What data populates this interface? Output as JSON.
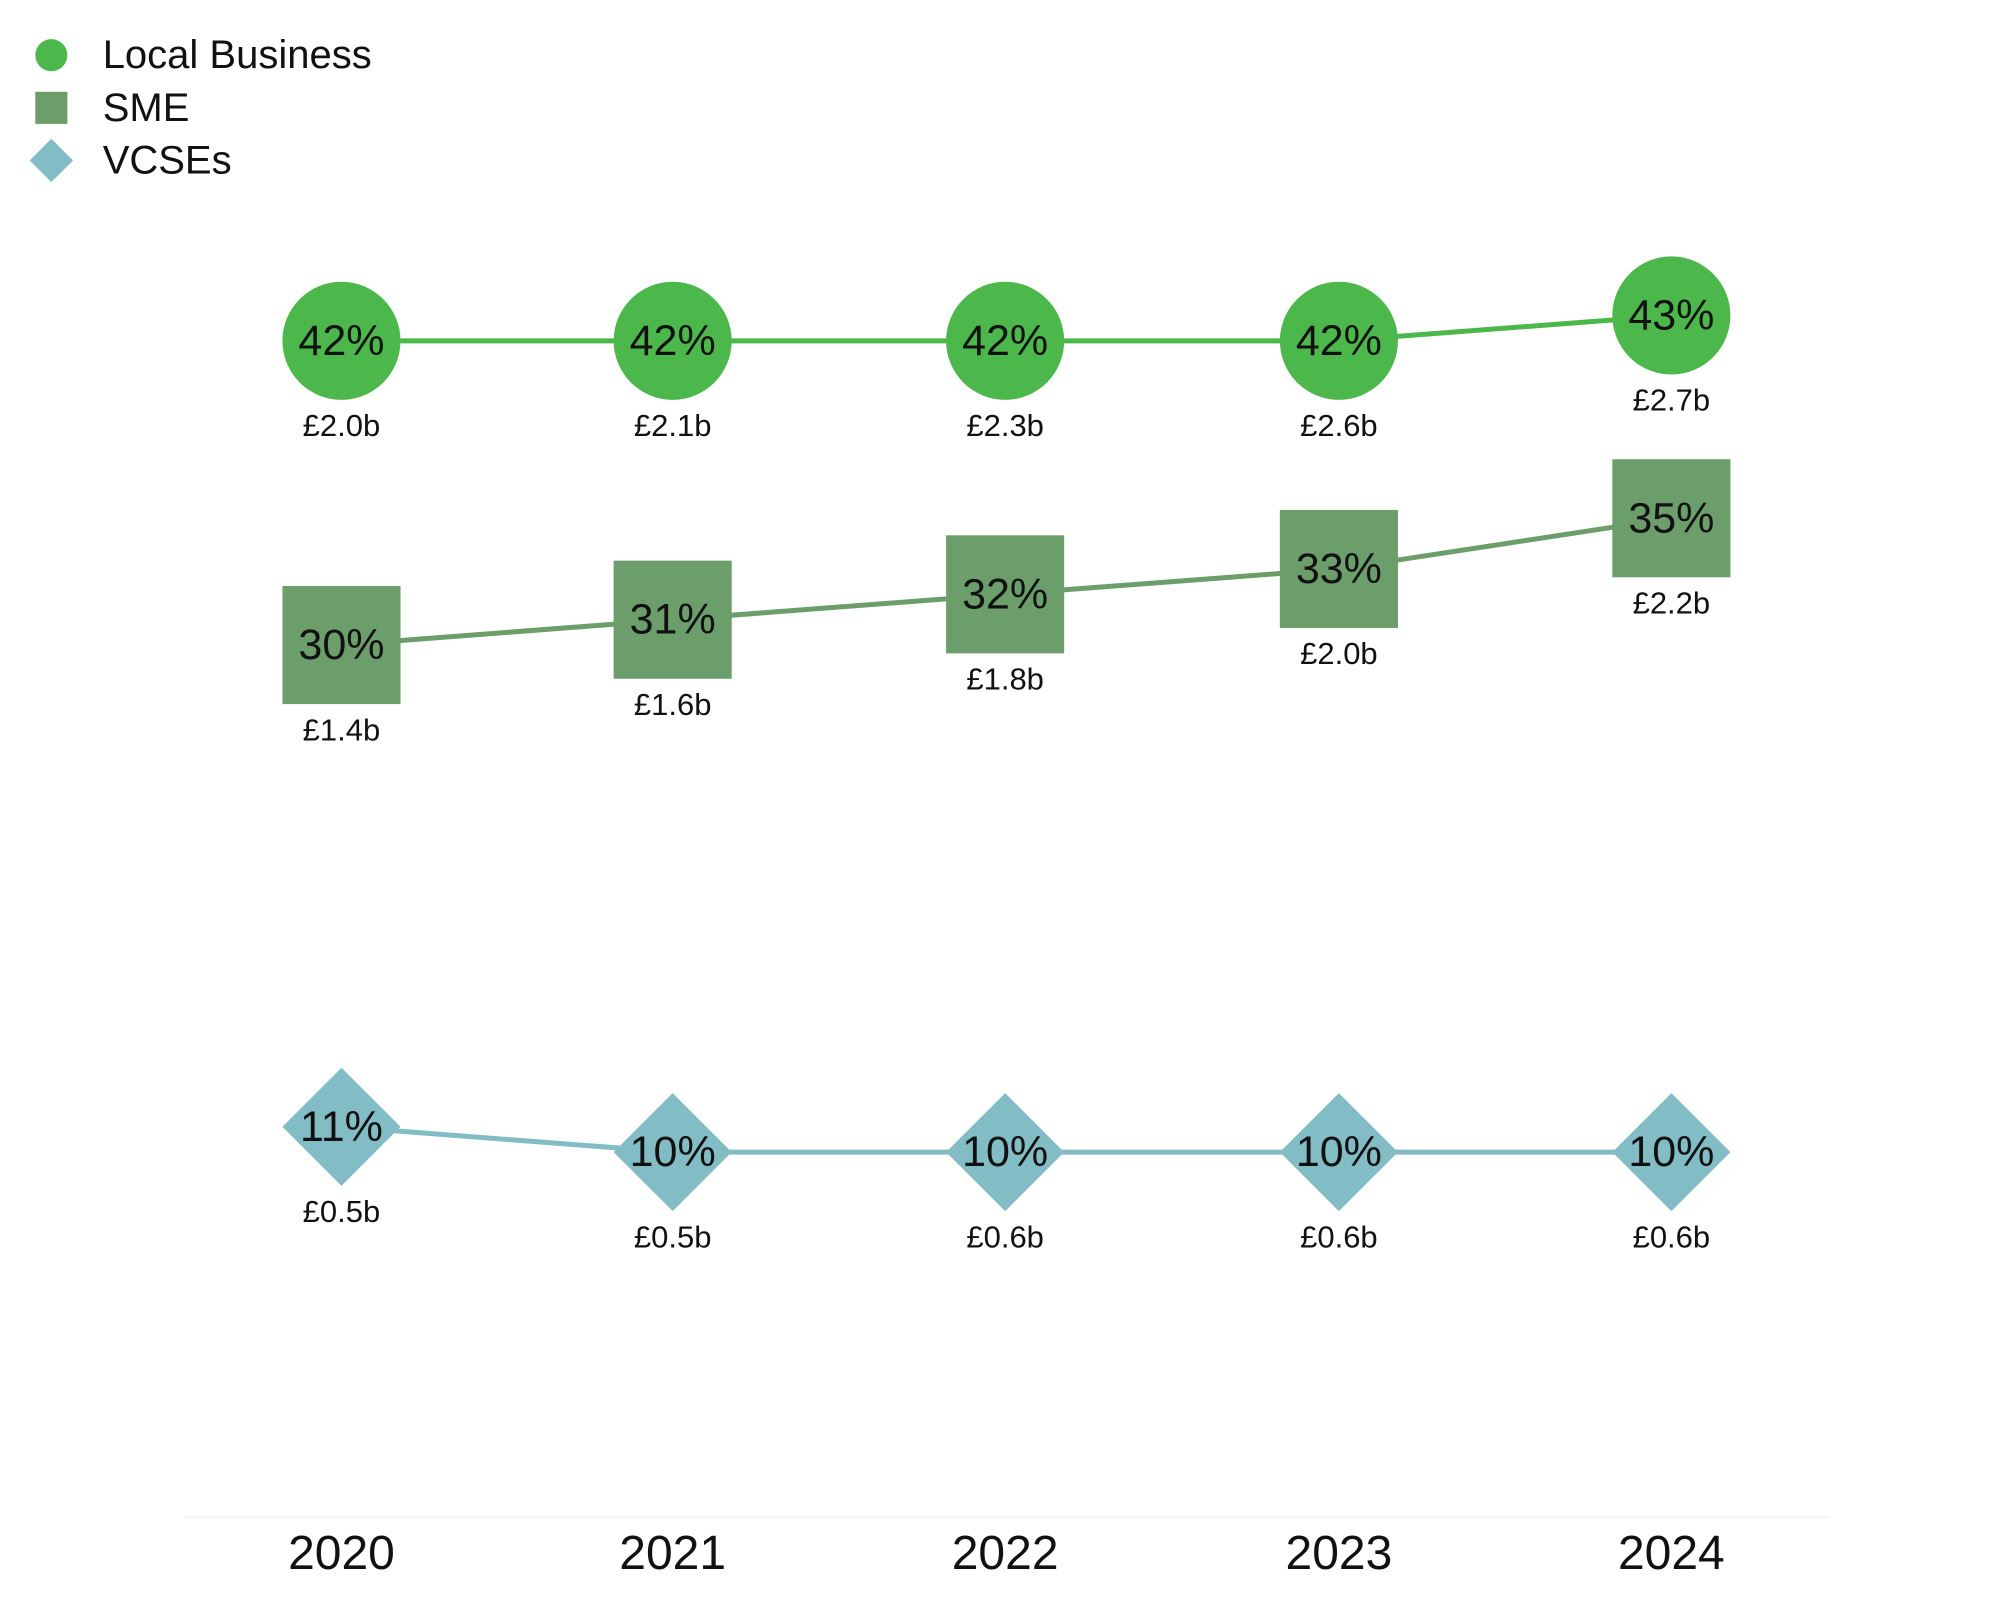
{
  "chart_data": {
    "type": "line",
    "categories": [
      "2020",
      "2021",
      "2022",
      "2023",
      "2024"
    ],
    "series": [
      {
        "name": "Local Business",
        "marker": "circle",
        "color": "#4cb84c",
        "values": [
          42,
          42,
          42,
          42,
          43
        ],
        "value_labels": [
          "42%",
          "42%",
          "42%",
          "42%",
          "43%"
        ],
        "amount_labels": [
          "£2.0b",
          "£2.1b",
          "£2.3b",
          "£2.6b",
          "£2.7b"
        ]
      },
      {
        "name": "SME",
        "marker": "square",
        "color": "#6b9e6b",
        "values": [
          30,
          31,
          32,
          33,
          35
        ],
        "value_labels": [
          "30%",
          "31%",
          "32%",
          "33%",
          "35%"
        ],
        "amount_labels": [
          "£1.4b",
          "£1.6b",
          "£1.8b",
          "£2.0b",
          "£2.2b"
        ]
      },
      {
        "name": "VCSEs",
        "marker": "diamond",
        "color": "#82bcc4",
        "values": [
          11,
          10,
          10,
          10,
          10
        ],
        "value_labels": [
          "11%",
          "10%",
          "10%",
          "10%",
          "10%"
        ],
        "amount_labels": [
          "£0.5b",
          "£0.5b",
          "£0.6b",
          "£0.6b",
          "£0.6b"
        ]
      }
    ],
    "legend_position": "top-left",
    "grid": false,
    "title": "",
    "xlabel": "",
    "ylabel": ""
  }
}
